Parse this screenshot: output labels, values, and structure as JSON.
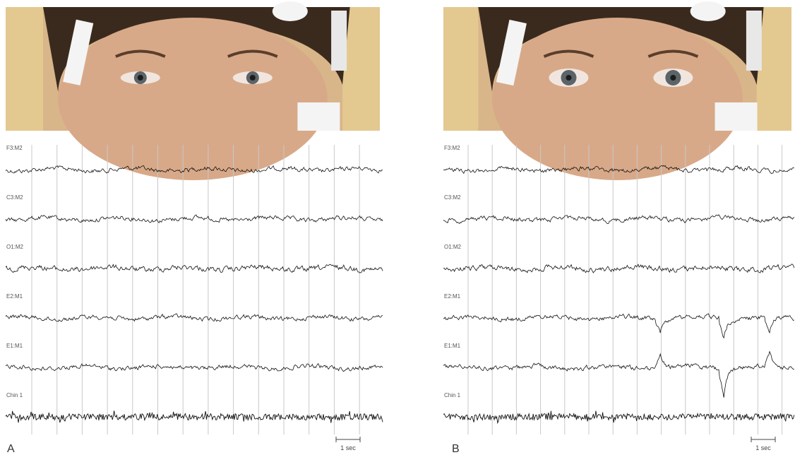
{
  "panels": [
    {
      "label": "A",
      "channels": [
        "F3:M2",
        "C3:M2",
        "O1:M2",
        "E2:M1",
        "E1:M1",
        "Chin 1"
      ],
      "scale_bar": "1 sec"
    },
    {
      "label": "B",
      "channels": [
        "F3:M2",
        "C3:M2",
        "O1:M2",
        "E2:M1",
        "E1:M1",
        "Chin 1"
      ],
      "scale_bar": "1 sec"
    }
  ]
}
